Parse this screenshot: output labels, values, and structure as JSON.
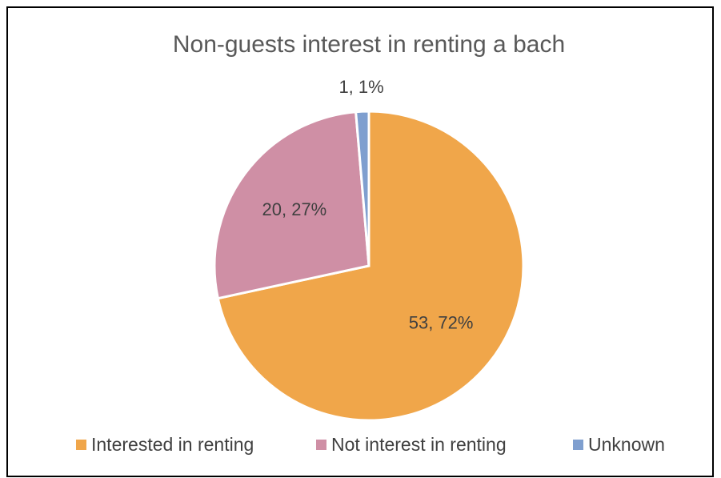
{
  "chart_data": {
    "type": "pie",
    "title": "Non-guests interest in renting a bach",
    "categories": [
      "Interested in renting",
      "Not interest in renting",
      "Unknown"
    ],
    "values": [
      53,
      20,
      1
    ],
    "value_labels": [
      "53, 72%",
      "20, 27%",
      "1, 1%"
    ],
    "colors": [
      "#f0a64a",
      "#cf8fa5",
      "#7f9fcf"
    ],
    "legend": "bottom"
  }
}
